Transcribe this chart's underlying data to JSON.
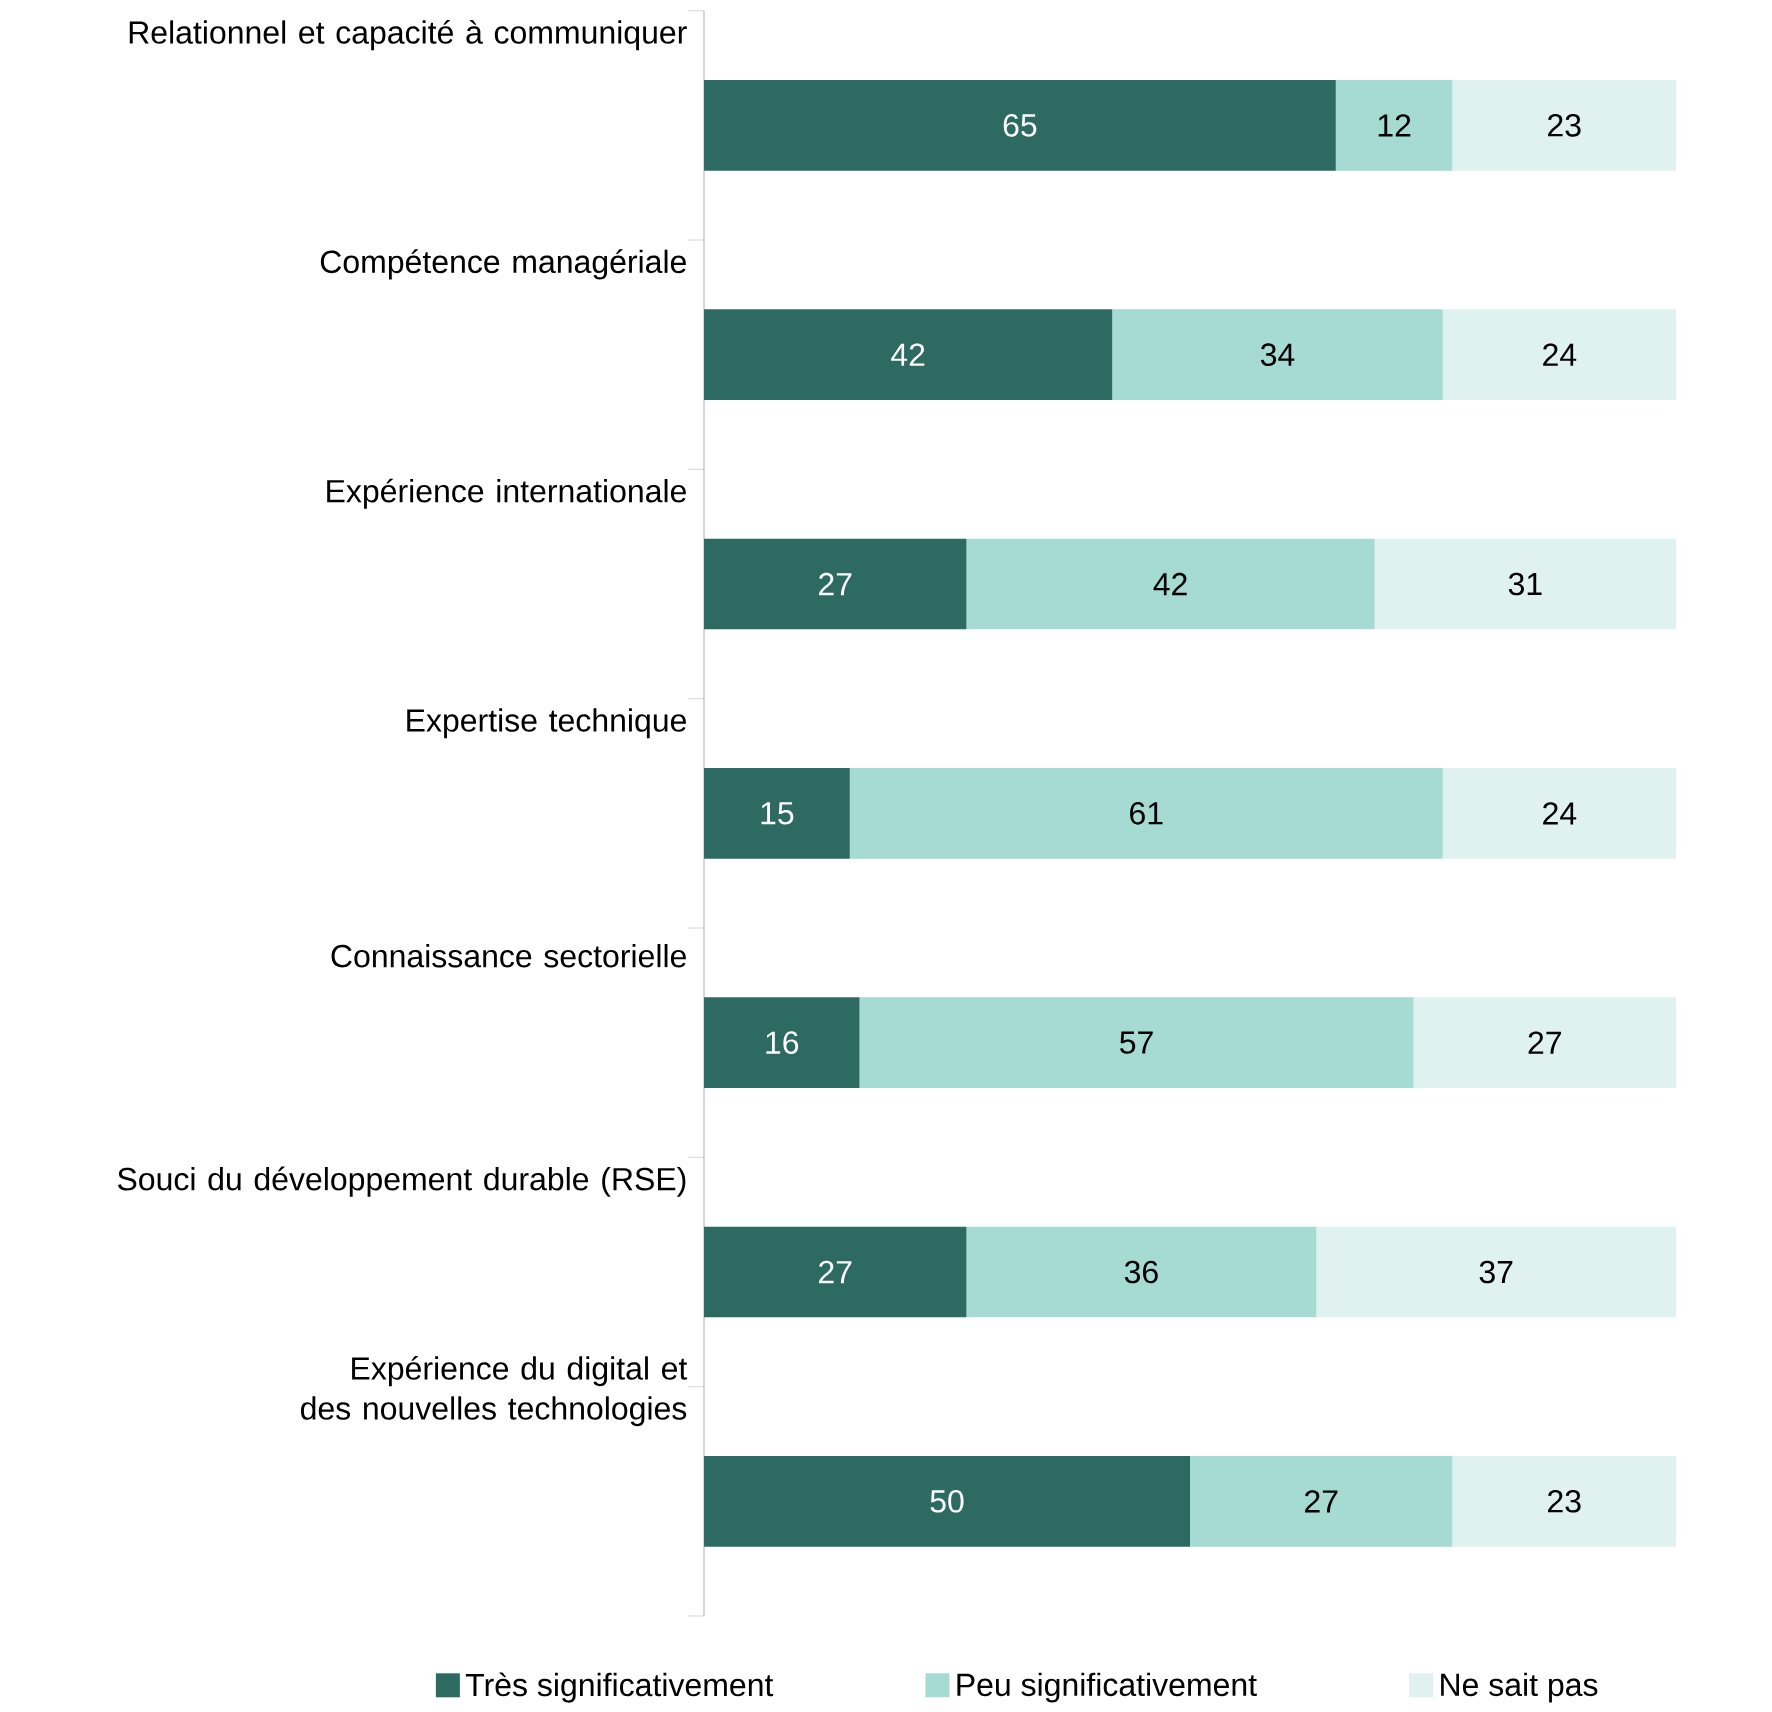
{
  "chart_data": {
    "type": "bar",
    "orientation": "horizontal",
    "stacked": true,
    "data_labels": true,
    "legend": "bottom",
    "tick_labels": "y",
    "xlim": [
      0,
      100
    ],
    "categories": [
      "Relationnel et capacité à communiquer",
      "Compétence managériale",
      "Expérience internationale",
      "Expertise technique",
      "Connaissance sectorielle",
      "Souci du développement durable (RSE)",
      "Expérience du digital et des nouvelles technologies"
    ],
    "series": [
      {
        "name": "Très significativement",
        "color": "#2d6a62",
        "values": [
          65,
          42,
          27,
          15,
          16,
          27,
          50
        ]
      },
      {
        "name": "Peu significativement",
        "color": "#a6dbd4",
        "values": [
          12,
          34,
          42,
          61,
          57,
          36,
          27
        ]
      },
      {
        "name": "Ne sait pas",
        "color": "#dff2ef",
        "values": [
          23,
          24,
          31,
          24,
          27,
          37,
          23
        ]
      }
    ]
  }
}
